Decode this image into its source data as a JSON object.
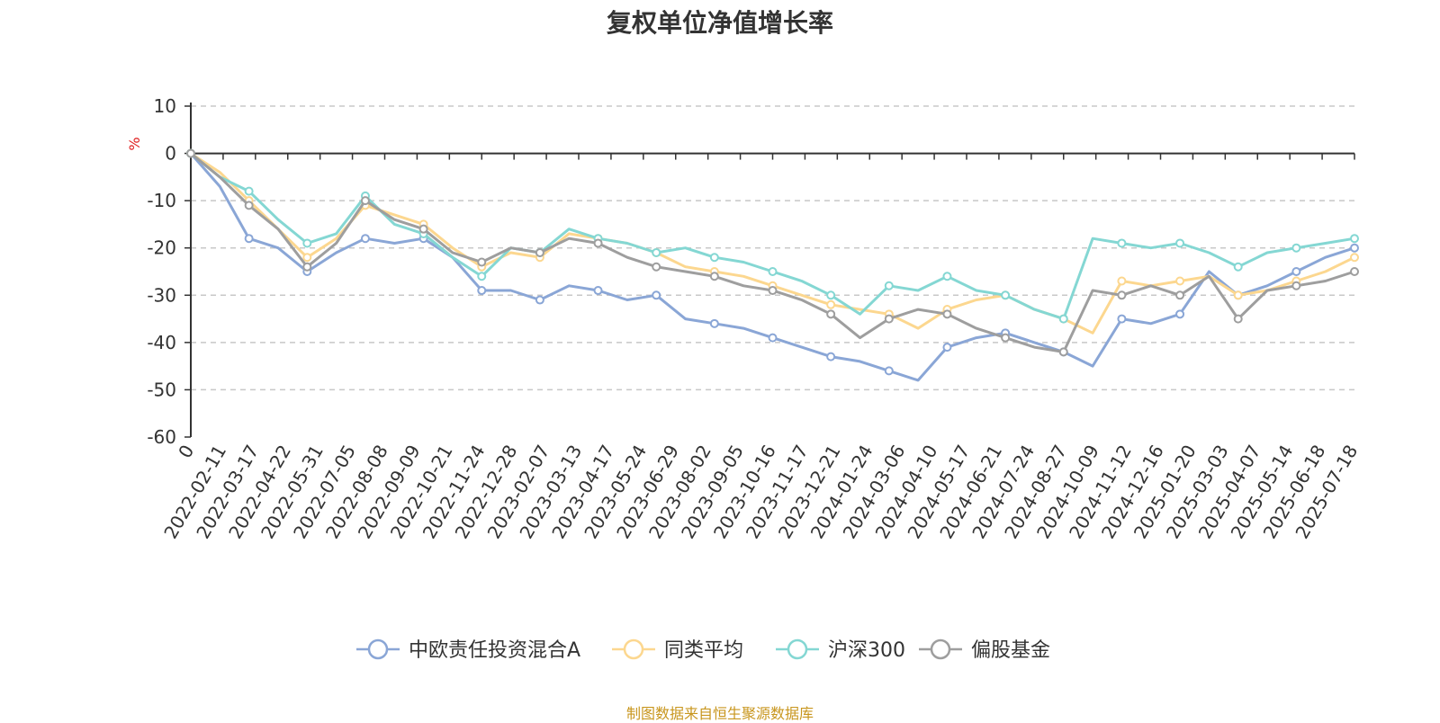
{
  "chart_data": {
    "type": "line",
    "title": "复权单位净值增长率",
    "ylabel": "%",
    "ylim": [
      -60,
      10
    ],
    "yticks": [
      10,
      0,
      -10,
      -20,
      -30,
      -40,
      -50,
      -60
    ],
    "x_ticks": [
      "0",
      "2022-02-11",
      "2022-03-17",
      "2022-04-22",
      "2022-05-31",
      "2022-07-05",
      "2022-08-08",
      "2022-09-09",
      "2022-10-21",
      "2022-11-24",
      "2022-12-28",
      "2023-02-07",
      "2023-03-13",
      "2023-04-17",
      "2023-05-24",
      "2023-06-29",
      "2023-08-02",
      "2023-09-05",
      "2023-10-16",
      "2023-11-17",
      "2023-12-21",
      "2024-01-24",
      "2024-03-06",
      "2024-04-10",
      "2024-05-17",
      "2024-06-21",
      "2024-07-24",
      "2024-08-27",
      "2024-10-09",
      "2024-11-12",
      "2024-12-16",
      "2025-01-20",
      "2025-03-03",
      "2025-04-07",
      "2025-05-14",
      "2025-06-18",
      "2025-07-18"
    ],
    "grid": "horizontal-dashed",
    "legend_position": "bottom",
    "series": [
      {
        "name": "中欧责任投资混合A",
        "color": "#8aa6d6",
        "values": [
          0,
          -7,
          -18,
          -20,
          -25,
          -21,
          -18,
          -19,
          -18,
          -22,
          -29,
          -29,
          -31,
          -28,
          -29,
          -31,
          -30,
          -35,
          -36,
          -37,
          -39,
          -41,
          -43,
          -44,
          -46,
          -48,
          -41,
          -39,
          -38,
          -40,
          -42,
          -45,
          -35,
          -36,
          -34,
          -25,
          -30,
          -28,
          -25,
          -22,
          -20
        ]
      },
      {
        "name": "同类平均",
        "color": "#fcd78f",
        "values": [
          0,
          -4,
          -10,
          -16,
          -22,
          -18,
          -11,
          -13,
          -15,
          -20,
          -24,
          -21,
          -22,
          -17,
          -18,
          -19,
          -21,
          -24,
          -25,
          -26,
          -28,
          -30,
          -32,
          -33,
          -34,
          -37,
          -33,
          -31,
          -30,
          -33,
          -35,
          -38,
          -27,
          -28,
          -27,
          -26,
          -30,
          -29,
          -27,
          -25,
          -22
        ]
      },
      {
        "name": "沪深300",
        "color": "#84d7d3",
        "values": [
          0,
          -5,
          -8,
          -14,
          -19,
          -17,
          -9,
          -15,
          -17,
          -22,
          -26,
          -20,
          -21,
          -16,
          -18,
          -19,
          -21,
          -20,
          -22,
          -23,
          -25,
          -27,
          -30,
          -34,
          -28,
          -29,
          -26,
          -29,
          -30,
          -33,
          -35,
          -18,
          -19,
          -20,
          -19,
          -21,
          -24,
          -21,
          -20,
          -19,
          -18
        ]
      },
      {
        "name": "偏股基金",
        "color": "#9e9e9e",
        "values": [
          0,
          -5,
          -11,
          -16,
          -24,
          -19,
          -10,
          -14,
          -16,
          -21,
          -23,
          -20,
          -21,
          -18,
          -19,
          -22,
          -24,
          -25,
          -26,
          -28,
          -29,
          -31,
          -34,
          -39,
          -35,
          -33,
          -34,
          -37,
          -39,
          -41,
          -42,
          -29,
          -30,
          -28,
          -30,
          -26,
          -35,
          -29,
          -28,
          -27,
          -25
        ]
      }
    ]
  },
  "legend": {
    "items": [
      "中欧责任投资混合A",
      "同类平均",
      "沪深300",
      "偏股基金"
    ]
  },
  "source_note": "制图数据来自恒生聚源数据库"
}
